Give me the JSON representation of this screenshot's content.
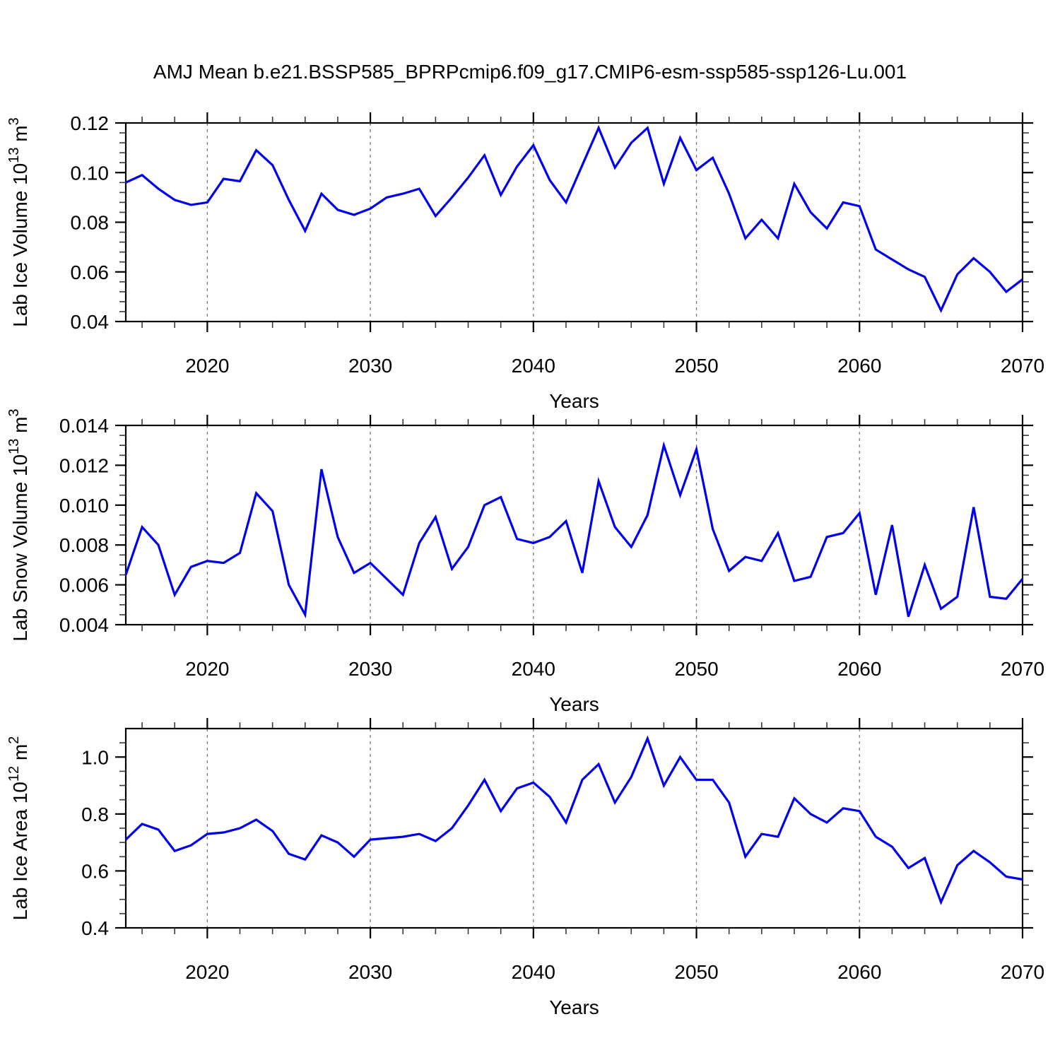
{
  "title": "AMJ Mean b.e21.BSSP585_BPRPcmip6.f09_g17.CMIP6-esm-ssp585-ssp126-Lu.001",
  "colors": {
    "line": "#0000ee",
    "frame": "#000000",
    "grid": "#7a7a7a",
    "major_tick": "#000000",
    "minor_tick": "#3a3a3a",
    "text": "#000000",
    "background": "#ffffff"
  },
  "chart_data": [
    {
      "type": "line",
      "title": "",
      "ylabel_parts": [
        {
          "t": "Lab Ice Volume 10"
        },
        {
          "t": "13",
          "sup": true
        },
        {
          "t": " m"
        },
        {
          "t": "3",
          "sup": true
        }
      ],
      "xlabel": "Years",
      "xlim": [
        2015,
        2070
      ],
      "ylim": [
        0.04,
        0.12
      ],
      "x_tick_labels": [
        "2020",
        "2030",
        "2040",
        "2050",
        "2060",
        "2070"
      ],
      "x_tick_values": [
        2020,
        2030,
        2040,
        2050,
        2060,
        2070
      ],
      "x_minor_step": 2,
      "grid_years": [
        2020,
        2030,
        2040,
        2050,
        2060
      ],
      "ytick_labels": [
        "0.04",
        "0.06",
        "0.08",
        "0.10",
        "0.12"
      ],
      "ytick_values": [
        0.04,
        0.06,
        0.08,
        0.1,
        0.12
      ],
      "y_minor_step": 0.004,
      "x": [
        2015,
        2016,
        2017,
        2018,
        2019,
        2020,
        2021,
        2022,
        2023,
        2024,
        2025,
        2026,
        2027,
        2028,
        2029,
        2030,
        2031,
        2032,
        2033,
        2034,
        2035,
        2036,
        2037,
        2038,
        2039,
        2040,
        2041,
        2042,
        2043,
        2044,
        2045,
        2046,
        2047,
        2048,
        2049,
        2050,
        2051,
        2052,
        2053,
        2054,
        2055,
        2056,
        2057,
        2058,
        2059,
        2060,
        2061,
        2062,
        2063,
        2064,
        2065,
        2066,
        2067,
        2068,
        2069,
        2070
      ],
      "values": [
        0.096,
        0.099,
        0.0935,
        0.089,
        0.087,
        0.088,
        0.0975,
        0.0965,
        0.109,
        0.103,
        0.089,
        0.0765,
        0.0915,
        0.085,
        0.083,
        0.0855,
        0.09,
        0.0915,
        0.0935,
        0.0825,
        0.09,
        0.098,
        0.107,
        0.091,
        0.1025,
        0.111,
        0.097,
        0.088,
        0.103,
        0.118,
        0.102,
        0.112,
        0.118,
        0.0955,
        0.114,
        0.101,
        0.106,
        0.0915,
        0.0735,
        0.081,
        0.0735,
        0.0955,
        0.084,
        0.0775,
        0.088,
        0.0865,
        0.069,
        0.065,
        0.061,
        0.058,
        0.0445,
        0.059,
        0.0655,
        0.06,
        0.052,
        0.057
      ]
    },
    {
      "type": "line",
      "title": "",
      "ylabel_parts": [
        {
          "t": "Lab Snow Volume 10"
        },
        {
          "t": "13",
          "sup": true
        },
        {
          "t": " m"
        },
        {
          "t": "3",
          "sup": true
        }
      ],
      "xlabel": "Years",
      "xlim": [
        2015,
        2070
      ],
      "ylim": [
        0.004,
        0.014
      ],
      "x_tick_labels": [
        "2020",
        "2030",
        "2040",
        "2050",
        "2060",
        "2070"
      ],
      "x_tick_values": [
        2020,
        2030,
        2040,
        2050,
        2060,
        2070
      ],
      "x_minor_step": 2,
      "grid_years": [
        2020,
        2030,
        2040,
        2050,
        2060
      ],
      "ytick_labels": [
        "0.004",
        "0.006",
        "0.008",
        "0.010",
        "0.012",
        "0.014"
      ],
      "ytick_values": [
        0.004,
        0.006,
        0.008,
        0.01,
        0.012,
        0.014
      ],
      "y_minor_step": 0.0005,
      "x": [
        2015,
        2016,
        2017,
        2018,
        2019,
        2020,
        2021,
        2022,
        2023,
        2024,
        2025,
        2026,
        2027,
        2028,
        2029,
        2030,
        2031,
        2032,
        2033,
        2034,
        2035,
        2036,
        2037,
        2038,
        2039,
        2040,
        2041,
        2042,
        2043,
        2044,
        2045,
        2046,
        2047,
        2048,
        2049,
        2050,
        2051,
        2052,
        2053,
        2054,
        2055,
        2056,
        2057,
        2058,
        2059,
        2060,
        2061,
        2062,
        2063,
        2064,
        2065,
        2066,
        2067,
        2068,
        2069,
        2070
      ],
      "values": [
        0.0065,
        0.0089,
        0.008,
        0.0055,
        0.0069,
        0.0072,
        0.0071,
        0.0076,
        0.0106,
        0.0097,
        0.006,
        0.0045,
        0.0118,
        0.0084,
        0.0066,
        0.0071,
        0.0063,
        0.0055,
        0.0081,
        0.0094,
        0.0068,
        0.0079,
        0.01,
        0.0104,
        0.0083,
        0.0081,
        0.0084,
        0.0092,
        0.0066,
        0.0112,
        0.0089,
        0.0079,
        0.0095,
        0.013,
        0.0105,
        0.0128,
        0.0088,
        0.0067,
        0.0074,
        0.0072,
        0.0086,
        0.0062,
        0.0064,
        0.0084,
        0.0086,
        0.0096,
        0.0055,
        0.009,
        0.0044,
        0.007,
        0.0048,
        0.0054,
        0.0099,
        0.0054,
        0.0053,
        0.0063
      ]
    },
    {
      "type": "line",
      "title": "",
      "ylabel_parts": [
        {
          "t": "Lab Ice Area 10"
        },
        {
          "t": "12",
          "sup": true
        },
        {
          "t": " m"
        },
        {
          "t": "2",
          "sup": true
        }
      ],
      "xlabel": "Years",
      "xlim": [
        2015,
        2070
      ],
      "ylim": [
        0.4,
        1.1
      ],
      "x_tick_labels": [
        "2020",
        "2030",
        "2040",
        "2050",
        "2060",
        "2070"
      ],
      "x_tick_values": [
        2020,
        2030,
        2040,
        2050,
        2060,
        2070
      ],
      "x_minor_step": 2,
      "grid_years": [
        2020,
        2030,
        2040,
        2050,
        2060
      ],
      "ytick_labels": [
        "0.4",
        "0.6",
        "0.8",
        "1.0"
      ],
      "ytick_values": [
        0.4,
        0.6,
        0.8,
        1.0
      ],
      "y_minor_step": 0.05,
      "x": [
        2015,
        2016,
        2017,
        2018,
        2019,
        2020,
        2021,
        2022,
        2023,
        2024,
        2025,
        2026,
        2027,
        2028,
        2029,
        2030,
        2031,
        2032,
        2033,
        2034,
        2035,
        2036,
        2037,
        2038,
        2039,
        2040,
        2041,
        2042,
        2043,
        2044,
        2045,
        2046,
        2047,
        2048,
        2049,
        2050,
        2051,
        2052,
        2053,
        2054,
        2055,
        2056,
        2057,
        2058,
        2059,
        2060,
        2061,
        2062,
        2063,
        2064,
        2065,
        2066,
        2067,
        2068,
        2069,
        2070
      ],
      "values": [
        0.71,
        0.765,
        0.745,
        0.67,
        0.69,
        0.73,
        0.735,
        0.75,
        0.78,
        0.74,
        0.66,
        0.64,
        0.725,
        0.7,
        0.65,
        0.71,
        0.715,
        0.72,
        0.73,
        0.705,
        0.75,
        0.83,
        0.92,
        0.81,
        0.89,
        0.91,
        0.86,
        0.77,
        0.92,
        0.975,
        0.84,
        0.93,
        1.065,
        0.9,
        1.0,
        0.92,
        0.92,
        0.84,
        0.65,
        0.73,
        0.72,
        0.855,
        0.8,
        0.77,
        0.82,
        0.81,
        0.72,
        0.685,
        0.61,
        0.645,
        0.49,
        0.62,
        0.67,
        0.63,
        0.58,
        0.57
      ]
    }
  ]
}
